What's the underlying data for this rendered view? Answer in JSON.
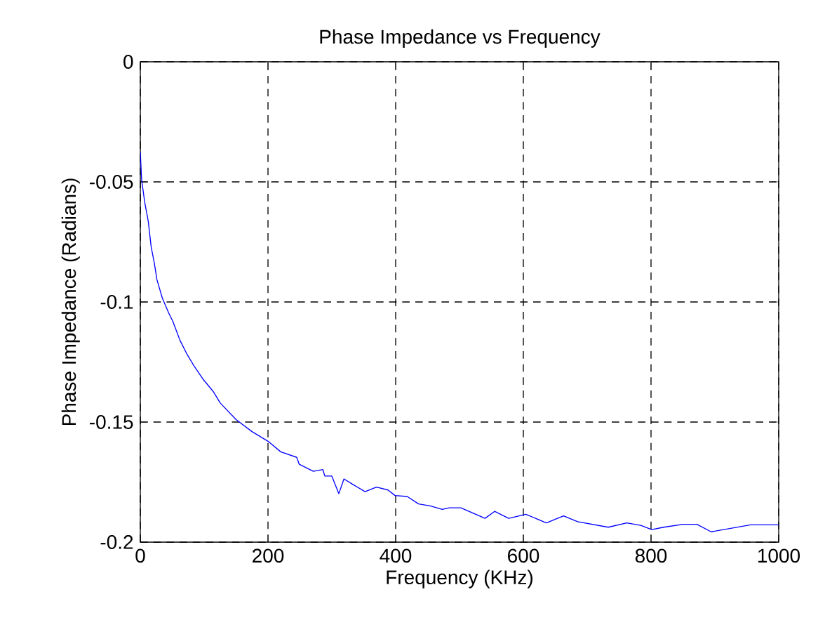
{
  "chart_data": {
    "type": "line",
    "title": "Phase Impedance vs Frequency",
    "xlabel": "Frequency (KHz)",
    "ylabel": "Phase Impedance (Radians)",
    "x": [
      0,
      2,
      7,
      12.5,
      17,
      22,
      26,
      34.5,
      44,
      51,
      62,
      73,
      84,
      99,
      114,
      125,
      150,
      175,
      200,
      220,
      245,
      249,
      271,
      286,
      289,
      300,
      311,
      319,
      333,
      352,
      370,
      388,
      399,
      418,
      436,
      454,
      473,
      484,
      502,
      540,
      555,
      577,
      604,
      636,
      663,
      685,
      733,
      762,
      784,
      801,
      820,
      850,
      872,
      894,
      956,
      1000
    ],
    "series": [
      {
        "color": "#0000ff",
        "values": [
          -0.0374,
          -0.049,
          -0.0587,
          -0.0665,
          -0.0771,
          -0.0839,
          -0.0907,
          -0.0984,
          -0.1043,
          -0.1081,
          -0.1159,
          -0.1217,
          -0.1266,
          -0.1324,
          -0.1372,
          -0.142,
          -0.149,
          -0.154,
          -0.158,
          -0.1624,
          -0.1647,
          -0.1676,
          -0.1705,
          -0.1698,
          -0.1725,
          -0.1725,
          -0.1798,
          -0.1737,
          -0.176,
          -0.179,
          -0.1771,
          -0.1783,
          -0.1806,
          -0.181,
          -0.1841,
          -0.1849,
          -0.1864,
          -0.1857,
          -0.1857,
          -0.1901,
          -0.1872,
          -0.1901,
          -0.1884,
          -0.192,
          -0.1891,
          -0.1915,
          -0.1938,
          -0.192,
          -0.193,
          -0.1948,
          -0.1938,
          -0.1926,
          -0.1926,
          -0.1957,
          -0.1928,
          -0.1928
        ]
      }
    ],
    "xlim": [
      0,
      1000
    ],
    "ylim": [
      -0.2,
      0
    ],
    "xticks": [
      0,
      200,
      400,
      600,
      800,
      1000
    ],
    "yticks": [
      -0.2,
      -0.15,
      -0.1,
      -0.05,
      0
    ],
    "grid": true
  }
}
